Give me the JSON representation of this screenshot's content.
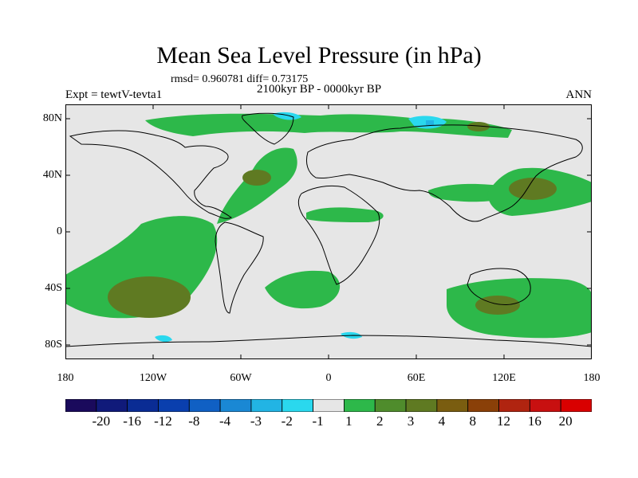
{
  "title": "Mean Sea Level Pressure (in hPa)",
  "stats": "rmsd= 0.960781 diff= 0.73175",
  "period": "2100kyr BP - 0000kyr BP",
  "experiment": "Expt = tewtV-tevta1",
  "season": "ANN",
  "chart_data": {
    "type": "heatmap",
    "title": "Mean Sea Level Pressure (in hPa)",
    "projection": "cylindrical-equidistant",
    "lon_range": [
      -180,
      180
    ],
    "lat_range": [
      -90,
      90
    ],
    "x_ticks": [
      {
        "value": -180,
        "label": "180"
      },
      {
        "value": -120,
        "label": "120W"
      },
      {
        "value": -60,
        "label": "60W"
      },
      {
        "value": 0,
        "label": "0"
      },
      {
        "value": 60,
        "label": "60E"
      },
      {
        "value": 120,
        "label": "120E"
      },
      {
        "value": 180,
        "label": "180"
      }
    ],
    "y_ticks": [
      {
        "value": 80,
        "label": "80N"
      },
      {
        "value": 40,
        "label": "40N"
      },
      {
        "value": 0,
        "label": "0"
      },
      {
        "value": -40,
        "label": "40S"
      },
      {
        "value": -80,
        "label": "80S"
      }
    ],
    "levels": [
      {
        "label": "-20",
        "color": "#1a0a5c"
      },
      {
        "label": "-16",
        "color": "#101a7a"
      },
      {
        "label": "-12",
        "color": "#0a2c94"
      },
      {
        "label": "-8",
        "color": "#0a3fae"
      },
      {
        "label": "-4",
        "color": "#1060c4"
      },
      {
        "label": "-3",
        "color": "#1a88d4"
      },
      {
        "label": "-2",
        "color": "#22b4e4"
      },
      {
        "label": "-1",
        "color": "#2ad8ee"
      },
      {
        "label": "1",
        "color": "#e6e6e6"
      },
      {
        "label": "2",
        "color": "#2db84a"
      },
      {
        "label": "3",
        "color": "#4f8c2c"
      },
      {
        "label": "4",
        "color": "#5f7a22"
      },
      {
        "label": "8",
        "color": "#7a5d10"
      },
      {
        "label": "12",
        "color": "#8a4008"
      },
      {
        "label": "16",
        "color": "#b02410"
      },
      {
        "label": "20",
        "color": "#c81010"
      },
      {
        "label": "",
        "color": "#d90000"
      }
    ],
    "background_color": "#e6e6e6",
    "anomaly_regions": [
      {
        "region": "North Atlantic",
        "level": "2"
      },
      {
        "region": "North Atlantic core",
        "level": "3"
      },
      {
        "region": "South Pacific",
        "level": "2"
      },
      {
        "region": "South Pacific core",
        "level": "3"
      },
      {
        "region": "South Atlantic",
        "level": "2"
      },
      {
        "region": "Southern Indian Ocean",
        "level": "2"
      },
      {
        "region": "Southern Indian Ocean core",
        "level": "3"
      },
      {
        "region": "North Pacific",
        "level": "2"
      },
      {
        "region": "North Pacific core",
        "level": "3"
      },
      {
        "region": "Arctic / Siberia",
        "level": "2"
      },
      {
        "region": "Arctic / Siberia",
        "level": "-1"
      },
      {
        "region": "Tropical Atlantic / Africa",
        "level": "2"
      },
      {
        "region": "Central Asia",
        "level": "2"
      },
      {
        "region": "Antarctic coast",
        "level": "-1"
      }
    ]
  }
}
